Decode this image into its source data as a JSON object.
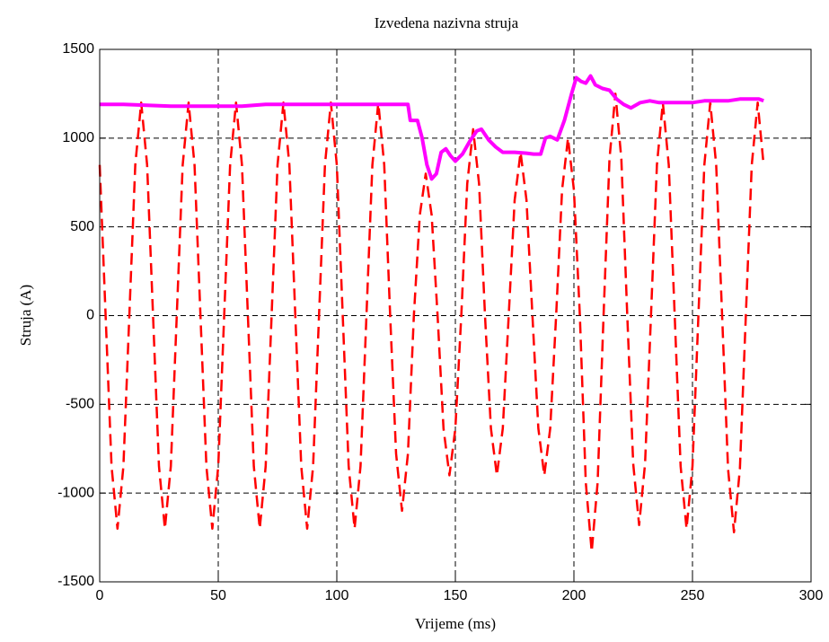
{
  "chart_data": {
    "type": "line",
    "title": "Izvedena nazivna struja",
    "xlabel": "Vrijeme (ms)",
    "ylabel": "Struja (A)",
    "xlim": [
      0,
      300
    ],
    "ylim": [
      -1500,
      1500
    ],
    "xticks": [
      0,
      50,
      100,
      150,
      200,
      250,
      300
    ],
    "yticks": [
      -1500,
      -1000,
      -500,
      0,
      500,
      1000,
      1500
    ],
    "grid": true,
    "series": [
      {
        "color": "#ff0000",
        "dash": true,
        "x": [
          0,
          2.5,
          5,
          7.5,
          10,
          12.5,
          15,
          17.5,
          20,
          22.5,
          25,
          27.5,
          30,
          32.5,
          35,
          37.5,
          40,
          42.5,
          45,
          47.5,
          50,
          52.5,
          55,
          57.5,
          60,
          62.5,
          65,
          67.5,
          70,
          72.5,
          75,
          77.5,
          80,
          82.5,
          85,
          87.5,
          90,
          92.5,
          95,
          97.5,
          100,
          102.5,
          105,
          107.5,
          110,
          112.5,
          115,
          117.5,
          120,
          122.5,
          125,
          127.5,
          130,
          132.5,
          135,
          137.5,
          140,
          142.5,
          145,
          147.5,
          150,
          152.5,
          155,
          157.5,
          160,
          162.5,
          165,
          167.5,
          170,
          172.5,
          175,
          177.5,
          180,
          182.5,
          185,
          187.5,
          190,
          192.5,
          195,
          197.5,
          200,
          202.5,
          205,
          207.5,
          210,
          212.5,
          215,
          217.5,
          220,
          222.5,
          225,
          227.5,
          230,
          232.5,
          235,
          237.5,
          240,
          242.5,
          245,
          247.5,
          250,
          252.5,
          255,
          257.5,
          260,
          262.5,
          265,
          267.5,
          270,
          272.5,
          275,
          277.5,
          280
        ],
        "values": [
          849,
          0,
          -849,
          -1200,
          -849,
          0,
          849,
          1200,
          849,
          0,
          -849,
          -1200,
          -849,
          0,
          849,
          1200,
          849,
          0,
          -849,
          -1200,
          -849,
          0,
          849,
          1200,
          849,
          0,
          -849,
          -1200,
          -849,
          0,
          849,
          1200,
          849,
          0,
          -849,
          -1200,
          -849,
          0,
          849,
          1200,
          849,
          0,
          -849,
          -1200,
          -849,
          0,
          849,
          1200,
          849,
          0,
          -778,
          -1100,
          -778,
          0,
          566,
          800,
          566,
          0,
          -636,
          -900,
          -636,
          0,
          742,
          1050,
          742,
          0,
          -636,
          -900,
          -636,
          0,
          650,
          920,
          650,
          0,
          -636,
          -900,
          -636,
          0,
          707,
          1000,
          707,
          0,
          -940,
          -1330,
          -940,
          0,
          884,
          1250,
          884,
          0,
          -834,
          -1180,
          -834,
          0,
          849,
          1200,
          849,
          0,
          -849,
          -1200,
          -849,
          0,
          849,
          1200,
          849,
          0,
          -863,
          -1220,
          -863,
          0,
          849,
          1200,
          849
        ]
      },
      {
        "color": "#ff00ff",
        "dash": false,
        "x": [
          0,
          10,
          20,
          30,
          60,
          70,
          130,
          131,
          134,
          136,
          138,
          140,
          142,
          144,
          146,
          148,
          150,
          153,
          156,
          159,
          161,
          164,
          167,
          170,
          175,
          180,
          183,
          186,
          188,
          190,
          193,
          196,
          199,
          201,
          203,
          205,
          207,
          209,
          212,
          215,
          218,
          221,
          224,
          228,
          232,
          236,
          240,
          250,
          255,
          265,
          270,
          278,
          280
        ],
        "values": [
          1190,
          1190,
          1185,
          1180,
          1180,
          1190,
          1190,
          1100,
          1100,
          1000,
          850,
          770,
          800,
          920,
          940,
          900,
          870,
          910,
          980,
          1040,
          1050,
          990,
          950,
          920,
          920,
          915,
          910,
          910,
          1000,
          1010,
          990,
          1100,
          1250,
          1340,
          1320,
          1310,
          1350,
          1300,
          1280,
          1270,
          1220,
          1190,
          1170,
          1200,
          1210,
          1200,
          1200,
          1200,
          1210,
          1210,
          1220,
          1220,
          1210
        ]
      }
    ]
  }
}
